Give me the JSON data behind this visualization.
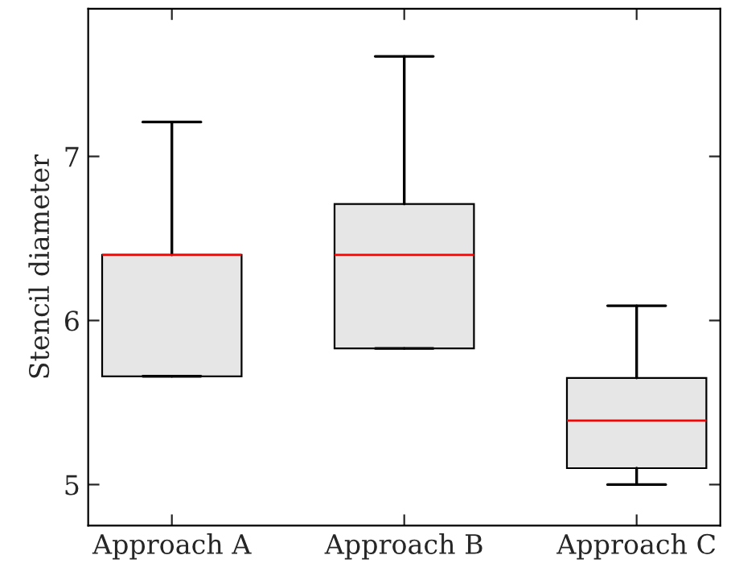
{
  "chart_data": {
    "type": "box",
    "ylabel": "Stencil diameter",
    "categories": [
      "Approach A",
      "Approach B",
      "Approach C"
    ],
    "boxes": [
      {
        "low": 5.66,
        "q1": 5.66,
        "median": 6.4,
        "q3": 6.4,
        "high": 7.21
      },
      {
        "low": 5.83,
        "q1": 5.83,
        "median": 6.4,
        "q3": 6.71,
        "high": 7.61
      },
      {
        "low": 5.0,
        "q1": 5.1,
        "median": 5.39,
        "q3": 5.65,
        "high": 6.09
      }
    ],
    "color": "#e6e6e6",
    "ylim": [
      4.75,
      7.9
    ],
    "yticks": [
      5,
      6,
      7
    ],
    "grid": false
  }
}
